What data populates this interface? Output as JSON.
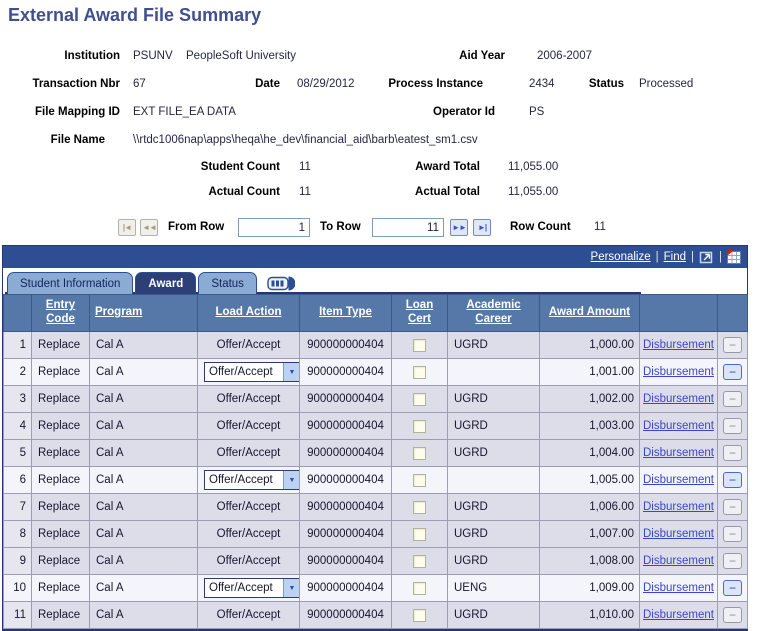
{
  "page": {
    "title": "External Award File Summary"
  },
  "header": {
    "institution": {
      "label": "Institution",
      "code": "PSUNV",
      "description": "PeopleSoft University"
    },
    "aid_year": {
      "label": "Aid Year",
      "value": "2006-2007"
    },
    "transaction_nbr": {
      "label": "Transaction Nbr",
      "value": "67"
    },
    "date": {
      "label": "Date",
      "value": "08/29/2012"
    },
    "process_instance": {
      "label": "Process Instance",
      "value": "2434"
    },
    "status": {
      "label": "Status",
      "value": "Processed"
    },
    "file_mapping_id": {
      "label": "File Mapping ID",
      "value": "EXT FILE_EA DATA"
    },
    "operator_id": {
      "label": "Operator Id",
      "value": "PS"
    },
    "file_name": {
      "label": "File Name",
      "value": "\\\\rtdc1006nap\\apps\\heqa\\he_dev\\financial_aid\\barb\\eatest_sm1.csv"
    },
    "student_count": {
      "label": "Student Count",
      "value": "11"
    },
    "award_total": {
      "label": "Award Total",
      "value": "11,055.00"
    },
    "actual_count": {
      "label": "Actual Count",
      "value": "11"
    },
    "actual_total": {
      "label": "Actual Total",
      "value": "11,055.00"
    }
  },
  "pagination": {
    "from_row_label": "From Row",
    "from_row_value": "1",
    "to_row_label": "To Row",
    "to_row_value": "11",
    "row_count_label": "Row Count",
    "row_count_value": "11",
    "icons": {
      "first": "|◄",
      "prev": "◄◄",
      "next": "►►",
      "last": "►|"
    }
  },
  "grid": {
    "toolbar": {
      "personalize": "Personalize",
      "find": "Find",
      "separator": "|"
    },
    "tabs": [
      {
        "label": "Student Information",
        "active": false
      },
      {
        "label": "Award",
        "active": true
      },
      {
        "label": "Status",
        "active": false
      }
    ],
    "columns": [
      "",
      "Entry Code",
      "Program",
      "Load Action",
      "Item Type",
      "Loan Cert",
      "Academic Career",
      "Award Amount",
      "",
      ""
    ],
    "disbursement_label": "Disbursement",
    "minus_glyph": "−",
    "select_chevron": "▼",
    "load_action_options": [
      "Offer/Accept"
    ],
    "rows": [
      {
        "num": "1",
        "entry_code": "Replace",
        "program": "Cal A",
        "load_action": "Offer/Accept",
        "editable": false,
        "item_type": "900000000404",
        "loan_cert": false,
        "academic_career": "UGRD",
        "award_amount": "1,000.00"
      },
      {
        "num": "2",
        "entry_code": "Replace",
        "program": "Cal A",
        "load_action": "Offer/Accept",
        "editable": true,
        "item_type": "900000000404",
        "loan_cert": false,
        "academic_career": "",
        "award_amount": "1,001.00"
      },
      {
        "num": "3",
        "entry_code": "Replace",
        "program": "Cal A",
        "load_action": "Offer/Accept",
        "editable": false,
        "item_type": "900000000404",
        "loan_cert": false,
        "academic_career": "UGRD",
        "award_amount": "1,002.00"
      },
      {
        "num": "4",
        "entry_code": "Replace",
        "program": "Cal A",
        "load_action": "Offer/Accept",
        "editable": false,
        "item_type": "900000000404",
        "loan_cert": false,
        "academic_career": "UGRD",
        "award_amount": "1,003.00"
      },
      {
        "num": "5",
        "entry_code": "Replace",
        "program": "Cal A",
        "load_action": "Offer/Accept",
        "editable": false,
        "item_type": "900000000404",
        "loan_cert": false,
        "academic_career": "UGRD",
        "award_amount": "1,004.00"
      },
      {
        "num": "6",
        "entry_code": "Replace",
        "program": "Cal A",
        "load_action": "Offer/Accept",
        "editable": true,
        "item_type": "900000000404",
        "loan_cert": false,
        "academic_career": "",
        "award_amount": "1,005.00"
      },
      {
        "num": "7",
        "entry_code": "Replace",
        "program": "Cal A",
        "load_action": "Offer/Accept",
        "editable": false,
        "item_type": "900000000404",
        "loan_cert": false,
        "academic_career": "UGRD",
        "award_amount": "1,006.00"
      },
      {
        "num": "8",
        "entry_code": "Replace",
        "program": "Cal A",
        "load_action": "Offer/Accept",
        "editable": false,
        "item_type": "900000000404",
        "loan_cert": false,
        "academic_career": "UGRD",
        "award_amount": "1,007.00"
      },
      {
        "num": "9",
        "entry_code": "Replace",
        "program": "Cal A",
        "load_action": "Offer/Accept",
        "editable": false,
        "item_type": "900000000404",
        "loan_cert": false,
        "academic_career": "UGRD",
        "award_amount": "1,008.00"
      },
      {
        "num": "10",
        "entry_code": "Replace",
        "program": "Cal A",
        "load_action": "Offer/Accept",
        "editable": true,
        "item_type": "900000000404",
        "loan_cert": false,
        "academic_career": "UENG",
        "award_amount": "1,009.00"
      },
      {
        "num": "11",
        "entry_code": "Replace",
        "program": "Cal A",
        "load_action": "Offer/Accept",
        "editable": false,
        "item_type": "900000000404",
        "loan_cert": false,
        "academic_career": "UGRD",
        "award_amount": "1,010.00"
      }
    ]
  },
  "colors": {
    "title_blue": "#414f8f",
    "navy_bar": "#2d4e92",
    "header_blue": "#5678a8",
    "tab_inactive": "#8cabd4",
    "tab_active": "#2c3f77",
    "row_lavender": "#dcdde9",
    "row_edit": "#f4f4fb",
    "numcell": "#e6e6ee",
    "grid_line": "#9c9cb4",
    "link_blue": "#3c46cc",
    "outer_border": "#26366e",
    "value_text": "#262644"
  }
}
